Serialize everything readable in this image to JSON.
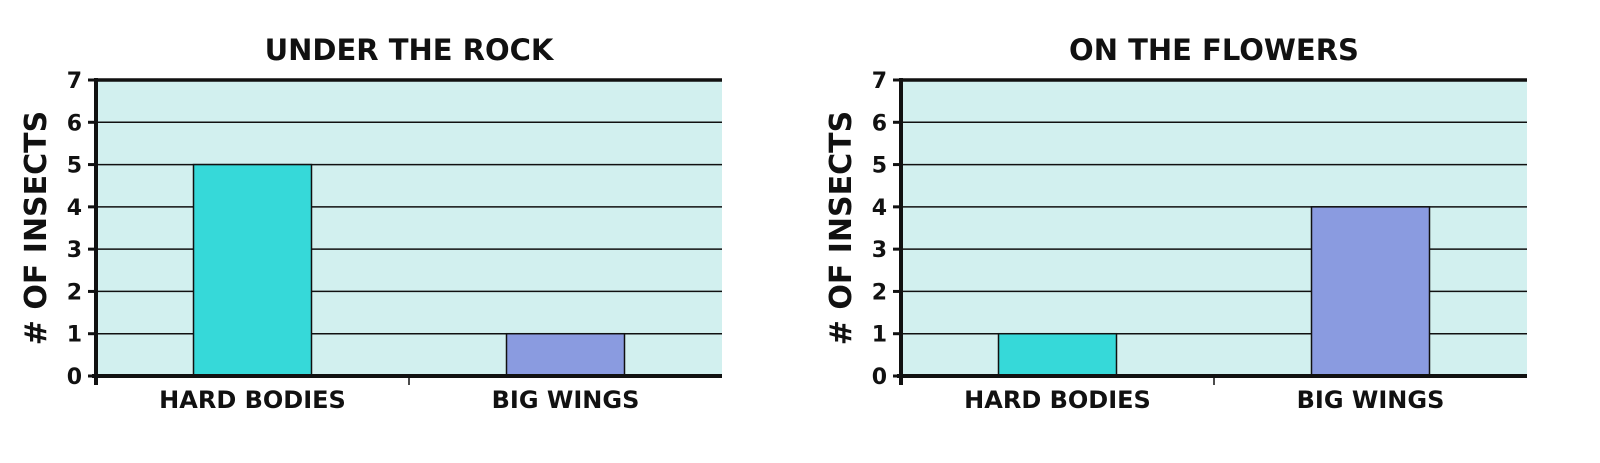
{
  "chart_data": [
    {
      "type": "bar",
      "title": "UNDER THE ROCK",
      "ylabel": "# OF INSECTS",
      "xlabel": "",
      "categories": [
        "HARD BODIES",
        "BIG WINGS"
      ],
      "values": [
        5,
        1
      ],
      "bar_colors": [
        "#36d9d9",
        "#8a9be0"
      ],
      "ylim": [
        0,
        7
      ],
      "yticks": [
        "0",
        "1",
        "2",
        "3",
        "4",
        "5",
        "6",
        "7"
      ],
      "grid": true,
      "plot_background": "#d2f0ef"
    },
    {
      "type": "bar",
      "title": "ON THE FLOWERS",
      "ylabel": "# OF INSECTS",
      "xlabel": "",
      "categories": [
        "HARD BODIES",
        "BIG WINGS"
      ],
      "values": [
        1,
        4
      ],
      "bar_colors": [
        "#36d9d9",
        "#8a9be0"
      ],
      "ylim": [
        0,
        7
      ],
      "yticks": [
        "0",
        "1",
        "2",
        "3",
        "4",
        "5",
        "6",
        "7"
      ],
      "grid": true,
      "plot_background": "#d2f0ef"
    }
  ]
}
